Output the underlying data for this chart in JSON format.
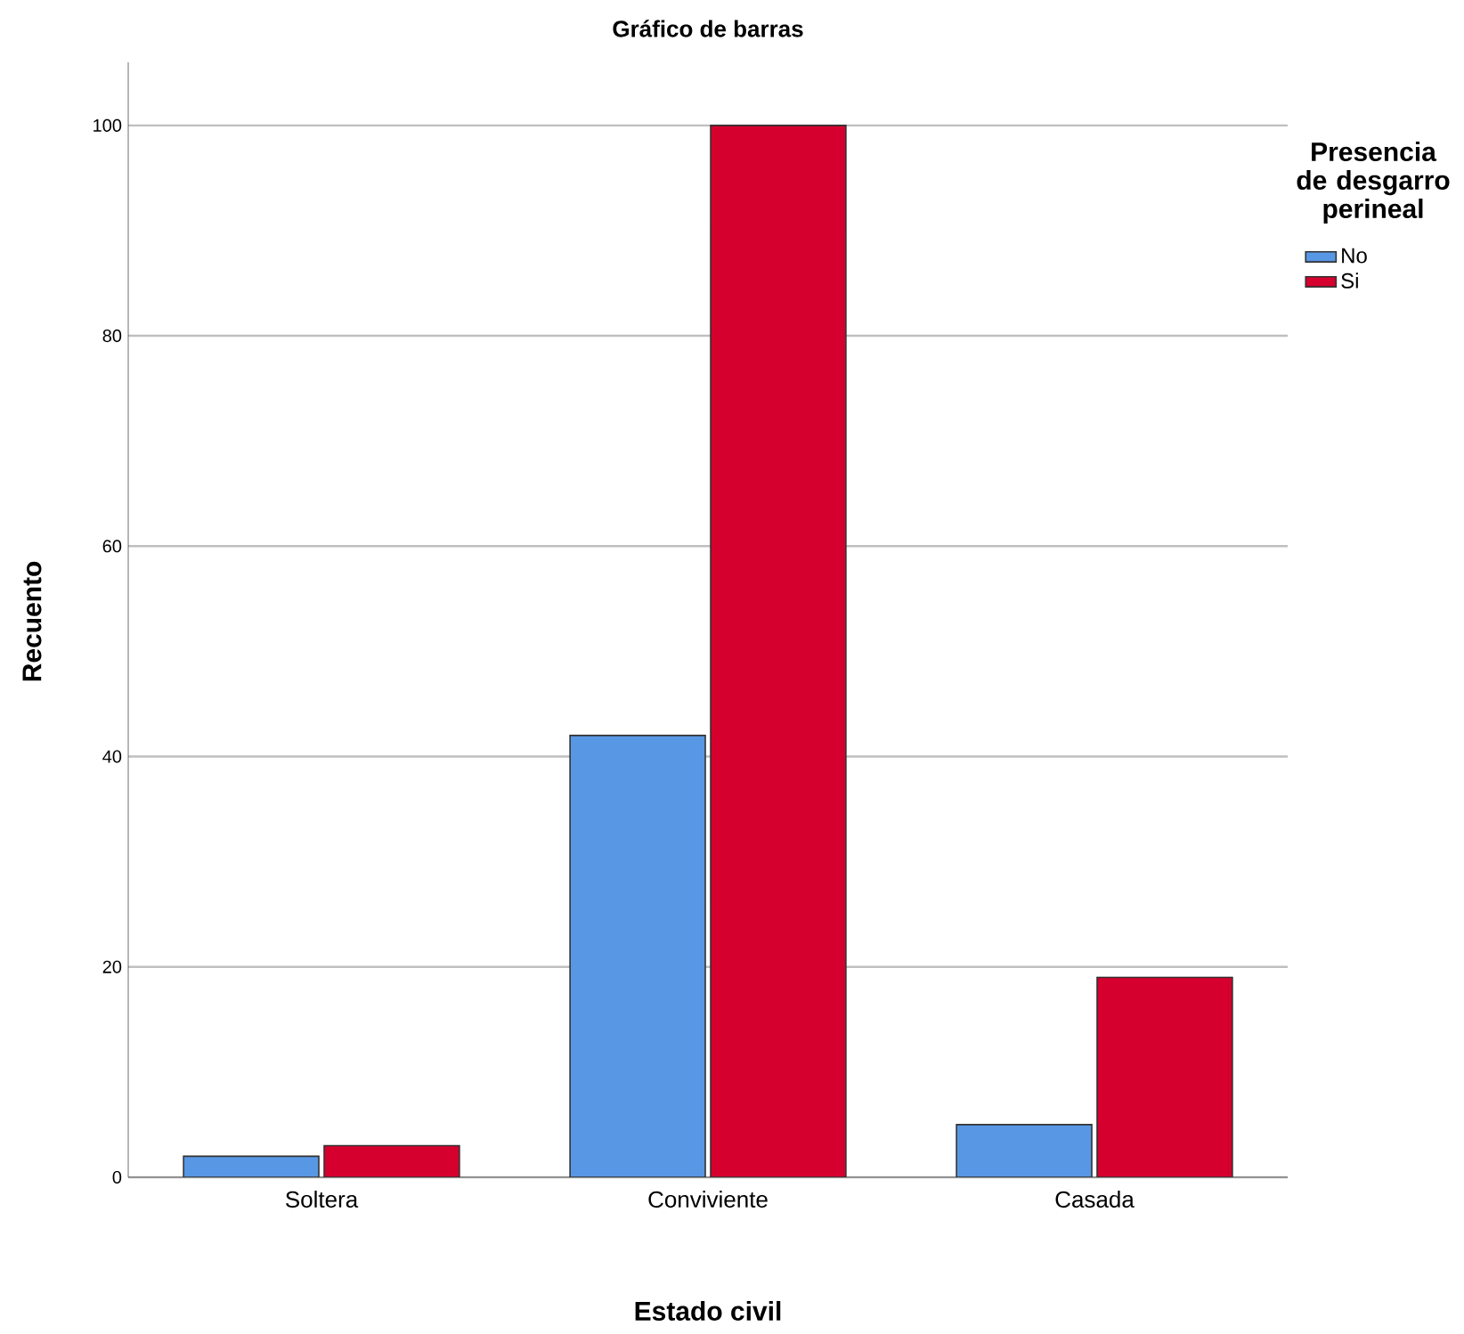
{
  "chart_data": {
    "type": "bar",
    "title": "Gráfico de barras",
    "xlabel": "Estado civil",
    "ylabel": "Recuento",
    "legend_title": "Presencia de desgarro perineal",
    "categories": [
      "Soltera",
      "Conviviente",
      "Casada"
    ],
    "series": [
      {
        "name": "No",
        "color": "#5897e3",
        "values": [
          2,
          42,
          5
        ]
      },
      {
        "name": "Si",
        "color": "#d5002e",
        "values": [
          3,
          100,
          19
        ]
      }
    ],
    "ylim": [
      0,
      106
    ],
    "yticks": [
      0,
      20,
      40,
      60,
      80,
      100
    ],
    "grid": "y",
    "legend": "top right"
  }
}
